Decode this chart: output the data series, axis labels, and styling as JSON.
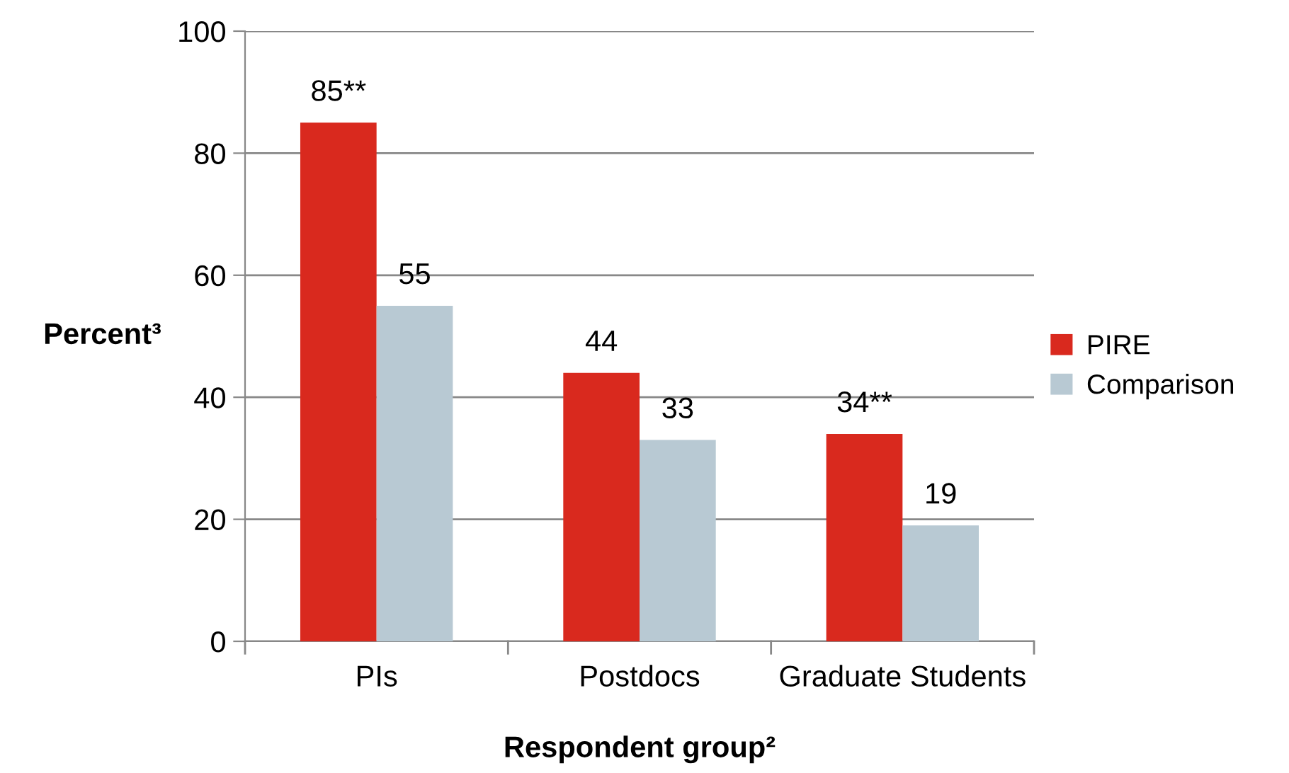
{
  "chart_data": {
    "type": "bar",
    "xlabel": "Respondent group²",
    "ylabel": "Percent³",
    "categories": [
      "PIs",
      "Postdocs",
      "Graduate Students"
    ],
    "series": [
      {
        "name": "PIRE",
        "color": "#d9291e",
        "values": [
          85,
          44,
          34
        ],
        "value_labels": [
          "85**",
          "44",
          "34**"
        ]
      },
      {
        "name": "Comparison",
        "color": "#b8c9d3",
        "values": [
          55,
          33,
          19
        ],
        "value_labels": [
          "55",
          "33",
          "19"
        ]
      }
    ],
    "ylim": [
      0,
      100
    ],
    "yticks": [
      0,
      20,
      40,
      60,
      80,
      100
    ],
    "grid": "y",
    "legend": "right"
  }
}
